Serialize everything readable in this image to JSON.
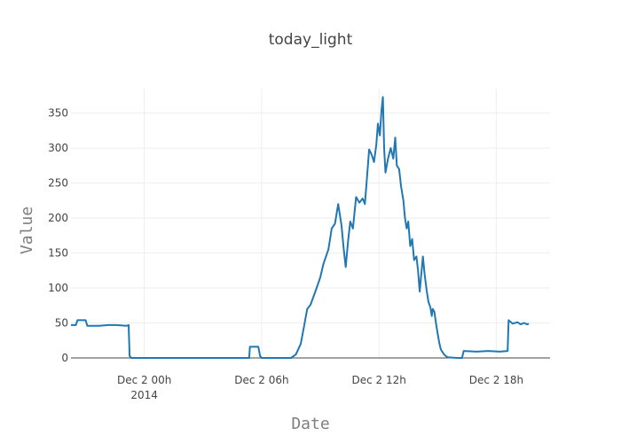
{
  "chart_data": {
    "type": "line",
    "title": "today_light",
    "xlabel": "Date",
    "ylabel": "Value",
    "x_axis": {
      "type": "date",
      "range": [
        "2014-12-01T20:15",
        "2014-12-02T20:45"
      ],
      "ticks": [
        {
          "t": "2014-12-02T00:00",
          "label": "Dec 2 00h",
          "sublabel": "2014"
        },
        {
          "t": "2014-12-02T06:00",
          "label": "Dec 2 06h",
          "sublabel": ""
        },
        {
          "t": "2014-12-02T12:00",
          "label": "Dec 2 12h",
          "sublabel": ""
        },
        {
          "t": "2014-12-02T18:00",
          "label": "Dec 2 18h",
          "sublabel": ""
        }
      ]
    },
    "ylim": [
      0,
      385
    ],
    "y_ticks": [
      0,
      50,
      100,
      150,
      200,
      250,
      300,
      350
    ],
    "grid": true,
    "legend": "none",
    "colors": {
      "line": "#1f77b4",
      "grid": "#eeeeee",
      "zero_line": "#444444"
    },
    "series": [
      {
        "color": "#1f77b4",
        "points": [
          [
            "2014-12-01T20:15",
            47
          ],
          [
            "2014-12-01T20:30",
            47
          ],
          [
            "2014-12-01T20:35",
            54
          ],
          [
            "2014-12-01T21:00",
            54
          ],
          [
            "2014-12-01T21:05",
            46
          ],
          [
            "2014-12-01T21:40",
            46
          ],
          [
            "2014-12-01T22:10",
            47
          ],
          [
            "2014-12-01T22:35",
            47
          ],
          [
            "2014-12-01T23:05",
            46
          ],
          [
            "2014-12-01T23:12",
            47
          ],
          [
            "2014-12-01T23:15",
            3
          ],
          [
            "2014-12-01T23:20",
            0
          ],
          [
            "2014-12-02T05:22",
            0
          ],
          [
            "2014-12-02T05:24",
            16
          ],
          [
            "2014-12-02T05:50",
            16
          ],
          [
            "2014-12-02T05:55",
            3
          ],
          [
            "2014-12-02T06:00",
            0
          ],
          [
            "2014-12-02T07:30",
            0
          ],
          [
            "2014-12-02T07:45",
            5
          ],
          [
            "2014-12-02T08:00",
            20
          ],
          [
            "2014-12-02T08:10",
            45
          ],
          [
            "2014-12-02T08:20",
            70
          ],
          [
            "2014-12-02T08:30",
            76
          ],
          [
            "2014-12-02T08:45",
            95
          ],
          [
            "2014-12-02T09:00",
            115
          ],
          [
            "2014-12-02T09:10",
            135
          ],
          [
            "2014-12-02T09:25",
            155
          ],
          [
            "2014-12-02T09:35",
            185
          ],
          [
            "2014-12-02T09:45",
            192
          ],
          [
            "2014-12-02T09:55",
            220
          ],
          [
            "2014-12-02T10:05",
            190
          ],
          [
            "2014-12-02T10:12",
            155
          ],
          [
            "2014-12-02T10:18",
            130
          ],
          [
            "2014-12-02T10:25",
            165
          ],
          [
            "2014-12-02T10:32",
            195
          ],
          [
            "2014-12-02T10:40",
            185
          ],
          [
            "2014-12-02T10:50",
            230
          ],
          [
            "2014-12-02T11:00",
            222
          ],
          [
            "2014-12-02T11:10",
            228
          ],
          [
            "2014-12-02T11:17",
            220
          ],
          [
            "2014-12-02T11:22",
            250
          ],
          [
            "2014-12-02T11:30",
            298
          ],
          [
            "2014-12-02T11:38",
            290
          ],
          [
            "2014-12-02T11:45",
            280
          ],
          [
            "2014-12-02T11:52",
            305
          ],
          [
            "2014-12-02T11:57",
            335
          ],
          [
            "2014-12-02T12:03",
            318
          ],
          [
            "2014-12-02T12:08",
            355
          ],
          [
            "2014-12-02T12:12",
            373
          ],
          [
            "2014-12-02T12:16",
            300
          ],
          [
            "2014-12-02T12:20",
            265
          ],
          [
            "2014-12-02T12:28",
            285
          ],
          [
            "2014-12-02T12:36",
            300
          ],
          [
            "2014-12-02T12:44",
            285
          ],
          [
            "2014-12-02T12:50",
            315
          ],
          [
            "2014-12-02T12:55",
            275
          ],
          [
            "2014-12-02T13:02",
            270
          ],
          [
            "2014-12-02T13:08",
            245
          ],
          [
            "2014-12-02T13:15",
            225
          ],
          [
            "2014-12-02T13:20",
            200
          ],
          [
            "2014-12-02T13:25",
            185
          ],
          [
            "2014-12-02T13:30",
            195
          ],
          [
            "2014-12-02T13:36",
            160
          ],
          [
            "2014-12-02T13:42",
            170
          ],
          [
            "2014-12-02T13:48",
            140
          ],
          [
            "2014-12-02T13:55",
            145
          ],
          [
            "2014-12-02T14:00",
            125
          ],
          [
            "2014-12-02T14:05",
            95
          ],
          [
            "2014-12-02T14:10",
            120
          ],
          [
            "2014-12-02T14:15",
            145
          ],
          [
            "2014-12-02T14:20",
            120
          ],
          [
            "2014-12-02T14:27",
            95
          ],
          [
            "2014-12-02T14:32",
            80
          ],
          [
            "2014-12-02T14:38",
            72
          ],
          [
            "2014-12-02T14:42",
            60
          ],
          [
            "2014-12-02T14:45",
            70
          ],
          [
            "2014-12-02T14:50",
            66
          ],
          [
            "2014-12-02T14:55",
            50
          ],
          [
            "2014-12-02T15:00",
            35
          ],
          [
            "2014-12-02T15:05",
            22
          ],
          [
            "2014-12-02T15:10",
            12
          ],
          [
            "2014-12-02T15:20",
            5
          ],
          [
            "2014-12-02T15:30",
            1
          ],
          [
            "2014-12-02T16:00",
            0
          ],
          [
            "2014-12-02T16:15",
            0
          ],
          [
            "2014-12-02T16:20",
            10
          ],
          [
            "2014-12-02T17:00",
            9
          ],
          [
            "2014-12-02T17:35",
            10
          ],
          [
            "2014-12-02T18:10",
            9
          ],
          [
            "2014-12-02T18:35",
            10
          ],
          [
            "2014-12-02T18:38",
            54
          ],
          [
            "2014-12-02T18:50",
            49
          ],
          [
            "2014-12-02T19:05",
            51
          ],
          [
            "2014-12-02T19:15",
            48
          ],
          [
            "2014-12-02T19:25",
            50
          ],
          [
            "2014-12-02T19:35",
            48
          ],
          [
            "2014-12-02T19:40",
            49
          ]
        ]
      }
    ]
  }
}
